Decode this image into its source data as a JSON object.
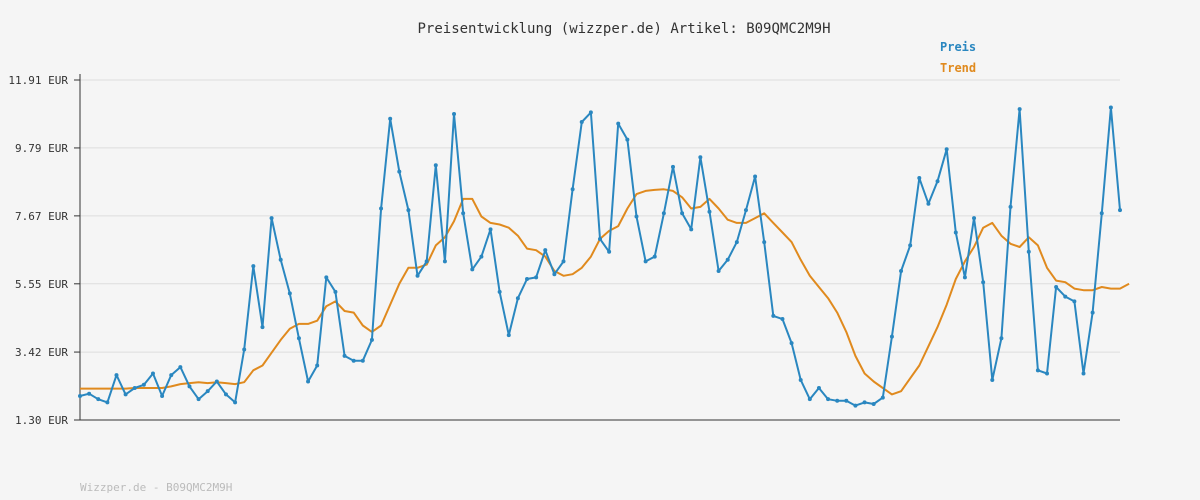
{
  "title": "Preisentwicklung (wizzper.de) Artikel: B09QMC2M9H",
  "footer": "Wizzper.de - B09QMC2M9H",
  "colors": {
    "preis": "#2a87c0",
    "trend": "#e08a1e",
    "grid": "#dddddd",
    "axis": "#333333",
    "background": "#f5f5f5"
  },
  "chart_data": {
    "type": "line",
    "title": "Preisentwicklung (wizzper.de) Artikel: B09QMC2M9H",
    "xlabel": "",
    "ylabel": "",
    "ylim": [
      1.3,
      11.91
    ],
    "yticks": [
      "11.91 EUR",
      "9.79 EUR",
      "7.67 EUR",
      "5.55 EUR",
      "3.42 EUR",
      "1.30 EUR"
    ],
    "ytick_values": [
      11.91,
      9.79,
      7.67,
      5.55,
      3.42,
      1.3
    ],
    "grid": true,
    "legend": "top-right",
    "series": [
      {
        "name": "Preis",
        "color": "#2a87c0",
        "markers": true,
        "values": [
          2.05,
          2.12,
          1.95,
          1.85,
          2.7,
          2.1,
          2.3,
          2.4,
          2.75,
          2.05,
          2.7,
          2.95,
          2.35,
          1.95,
          2.2,
          2.5,
          2.1,
          1.85,
          3.5,
          6.1,
          4.2,
          7.6,
          6.3,
          5.25,
          3.85,
          2.5,
          3.0,
          5.75,
          5.3,
          3.3,
          3.15,
          3.15,
          3.8,
          7.9,
          10.7,
          9.05,
          7.85,
          5.8,
          6.25,
          9.25,
          6.25,
          10.85,
          7.75,
          6.0,
          6.4,
          7.25,
          5.3,
          3.95,
          5.1,
          5.7,
          5.75,
          6.6,
          5.85,
          6.25,
          8.5,
          10.6,
          10.9,
          6.95,
          6.55,
          10.55,
          10.05,
          7.65,
          6.25,
          6.4,
          7.75,
          9.2,
          7.75,
          7.25,
          9.5,
          7.8,
          5.95,
          6.3,
          6.85,
          7.85,
          8.9,
          6.85,
          4.55,
          4.45,
          3.7,
          2.55,
          1.95,
          2.3,
          1.95,
          1.9,
          1.9,
          1.75,
          1.85,
          1.8,
          2.0,
          3.9,
          5.95,
          6.75,
          8.85,
          8.05,
          8.75,
          9.75,
          7.15,
          5.75,
          7.6,
          5.6,
          2.55,
          3.85,
          7.95,
          11.0,
          6.55,
          2.85,
          2.75,
          5.45,
          5.15,
          5.0,
          2.75,
          4.65,
          7.75,
          11.05,
          7.85
        ]
      },
      {
        "name": "Trend",
        "color": "#e08a1e",
        "markers": false,
        "values": [
          2.28,
          2.28,
          2.28,
          2.28,
          2.28,
          2.28,
          2.3,
          2.3,
          2.3,
          2.3,
          2.35,
          2.42,
          2.45,
          2.48,
          2.45,
          2.48,
          2.45,
          2.42,
          2.48,
          2.85,
          3.0,
          3.4,
          3.8,
          4.15,
          4.3,
          4.3,
          4.4,
          4.85,
          5.0,
          4.7,
          4.65,
          4.25,
          4.05,
          4.25,
          4.9,
          5.55,
          6.05,
          6.05,
          6.15,
          6.75,
          7.0,
          7.5,
          8.2,
          8.2,
          7.65,
          7.45,
          7.4,
          7.3,
          7.05,
          6.65,
          6.6,
          6.4,
          5.95,
          5.8,
          5.85,
          6.05,
          6.4,
          6.95,
          7.2,
          7.35,
          7.9,
          8.35,
          8.45,
          8.48,
          8.5,
          8.45,
          8.25,
          7.9,
          7.95,
          8.2,
          7.9,
          7.55,
          7.45,
          7.45,
          7.6,
          7.75,
          7.45,
          7.15,
          6.85,
          6.3,
          5.8,
          5.45,
          5.1,
          4.65,
          4.05,
          3.3,
          2.75,
          2.5,
          2.3,
          2.1,
          2.2,
          2.6,
          3.0,
          3.6,
          4.2,
          4.9,
          5.7,
          6.25,
          6.7,
          7.3,
          7.45,
          7.05,
          6.8,
          6.7,
          7.0,
          6.75,
          6.05,
          5.65,
          5.6,
          5.4,
          5.35,
          5.35,
          5.45,
          5.4,
          5.4,
          5.55
        ]
      }
    ]
  }
}
